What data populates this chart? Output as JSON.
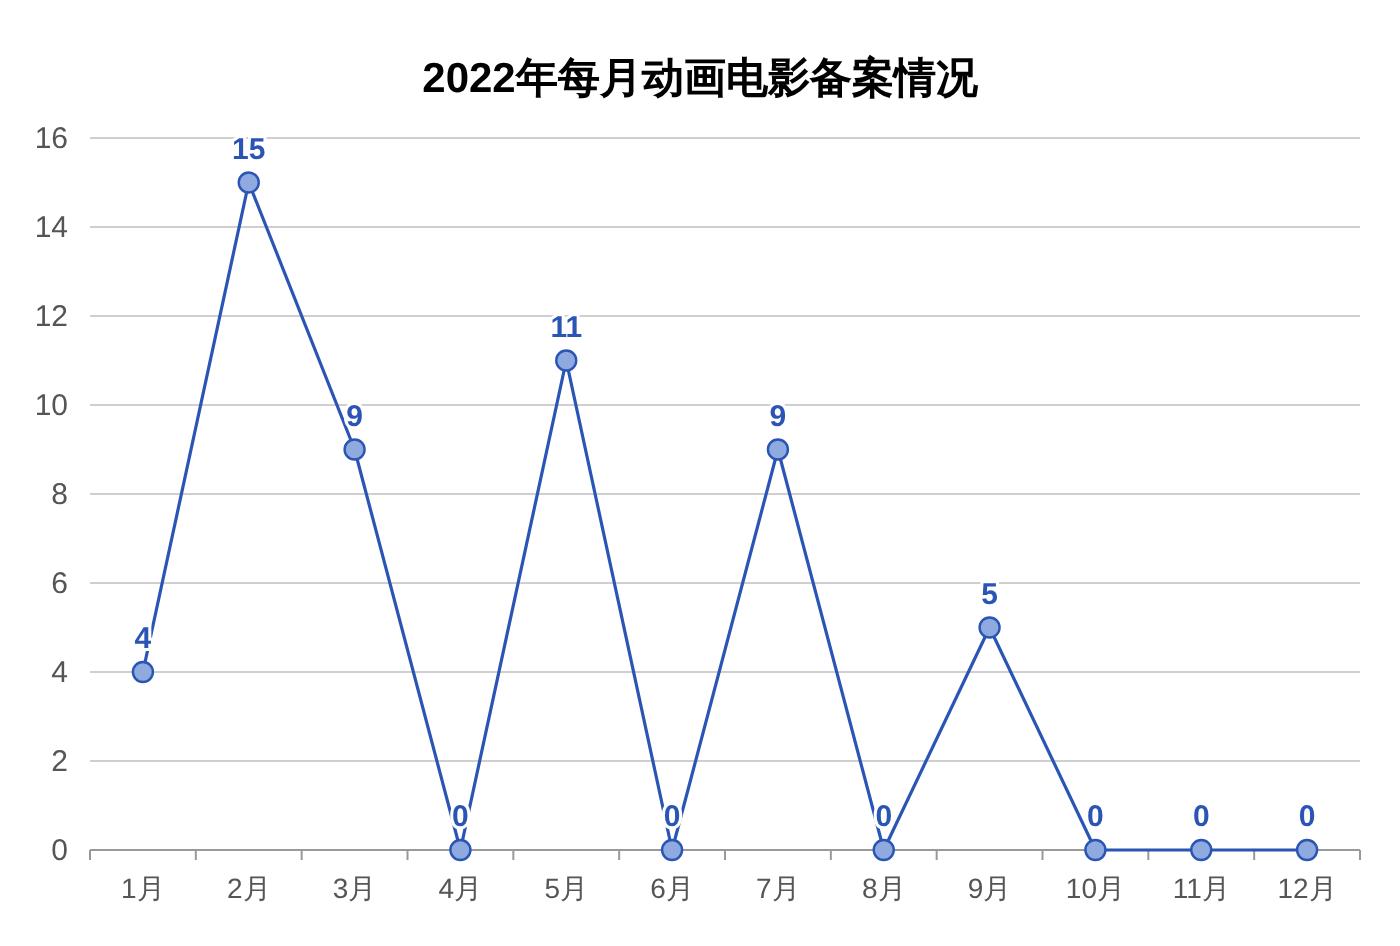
{
  "chart_data": {
    "type": "line",
    "title": "2022年每月动画电影备案情况",
    "categories": [
      "1月",
      "2月",
      "3月",
      "4月",
      "5月",
      "6月",
      "7月",
      "8月",
      "9月",
      "10月",
      "11月",
      "12月"
    ],
    "series": [
      {
        "color": "#2b55b5",
        "values": [
          4,
          15,
          9,
          0,
          11,
          0,
          9,
          0,
          5,
          0,
          0,
          0
        ]
      }
    ],
    "ylim": [
      0,
      16
    ],
    "yticks": [
      0,
      2,
      4,
      6,
      8,
      10,
      12,
      14,
      16
    ],
    "grid": "y",
    "marker": "circle",
    "data_labels": true
  }
}
